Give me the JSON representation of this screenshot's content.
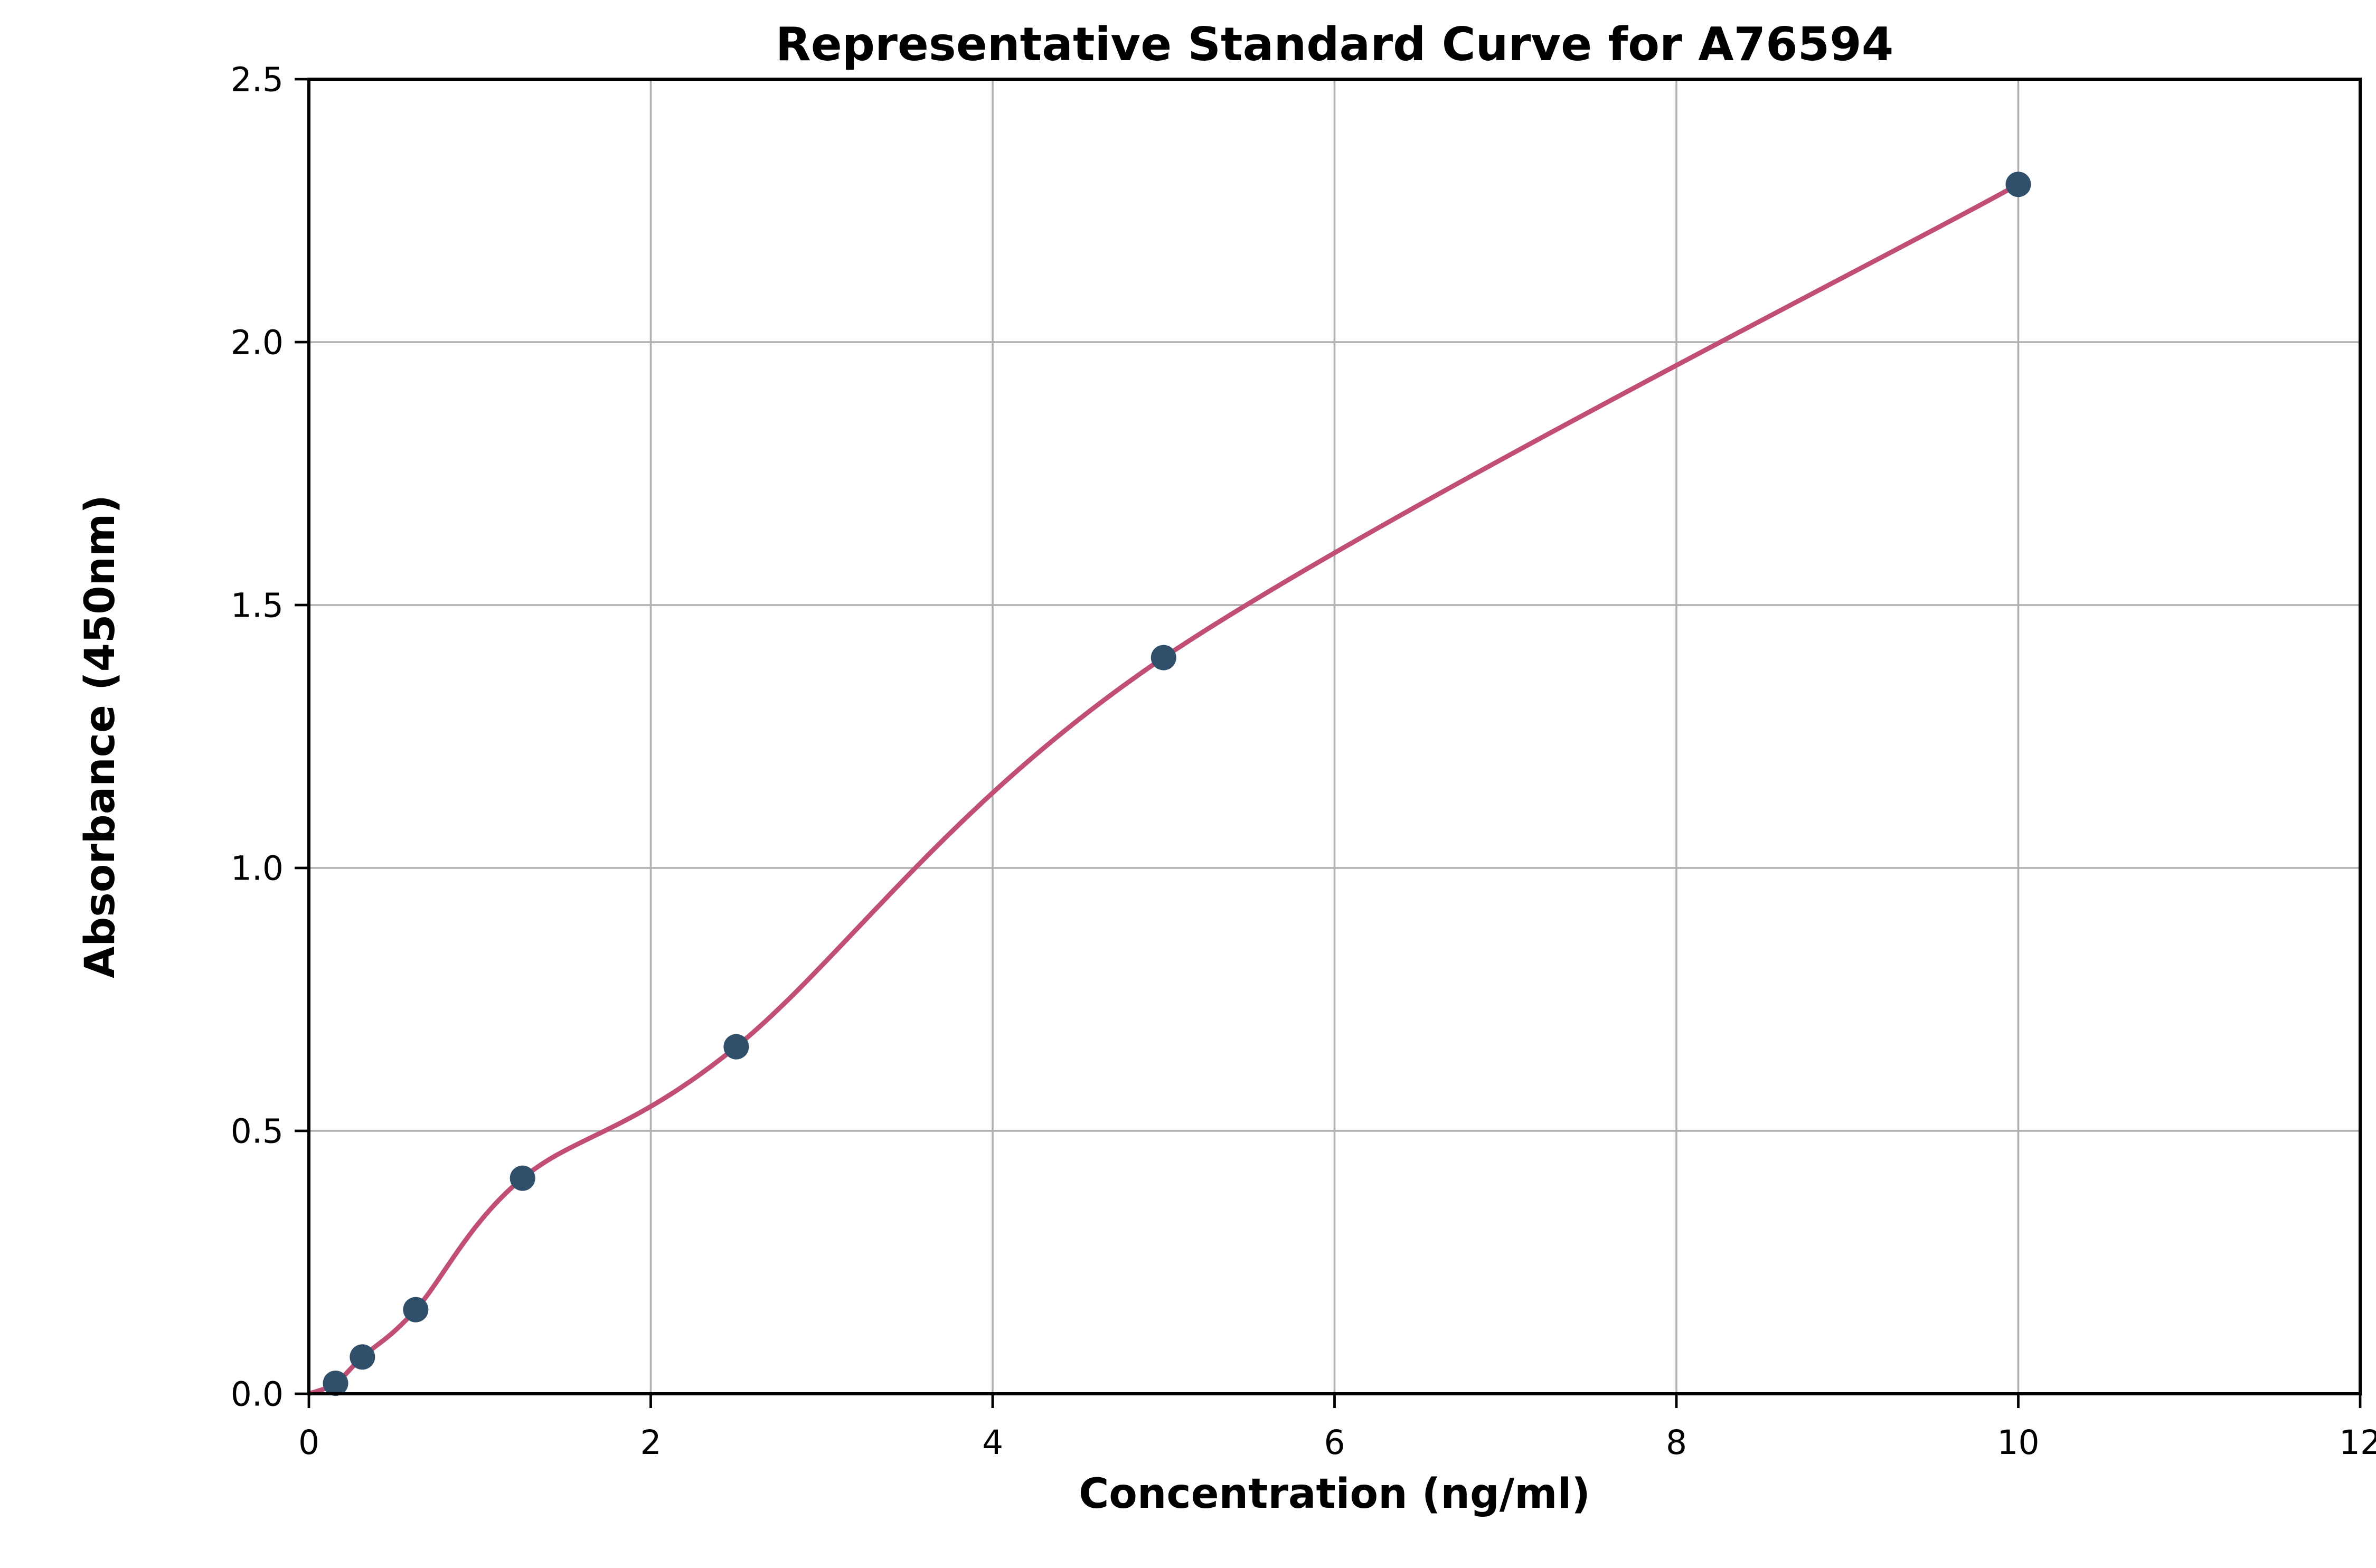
{
  "chart_data": {
    "type": "scatter",
    "title": "Representative Standard Curve for A76594",
    "xlabel": "Concentration (ng/ml)",
    "ylabel": "Absorbance (450nm)",
    "xlim": [
      0,
      12
    ],
    "ylim": [
      0,
      2.5
    ],
    "xticks": [
      0,
      2,
      4,
      6,
      8,
      10,
      12
    ],
    "xtick_labels": [
      "0",
      "2",
      "4",
      "6",
      "8",
      "10",
      "12"
    ],
    "yticks": [
      0.0,
      0.5,
      1.0,
      1.5,
      2.0,
      2.5
    ],
    "ytick_labels": [
      "0.0",
      "0.5",
      "1.0",
      "1.5",
      "2.0",
      "2.5"
    ],
    "grid": true,
    "legend": "none",
    "points": [
      {
        "x": 0.156,
        "y": 0.02
      },
      {
        "x": 0.313,
        "y": 0.07
      },
      {
        "x": 0.625,
        "y": 0.16
      },
      {
        "x": 1.25,
        "y": 0.41
      },
      {
        "x": 2.5,
        "y": 0.66
      },
      {
        "x": 5.0,
        "y": 1.4
      },
      {
        "x": 10.0,
        "y": 2.3
      }
    ],
    "curve_start": {
      "x": 0.0,
      "y": 0.0
    },
    "colors": {
      "curve": "#c14e74",
      "points": "#2f4f6b",
      "grid": "#b0b0b0",
      "text": "#000000"
    }
  }
}
